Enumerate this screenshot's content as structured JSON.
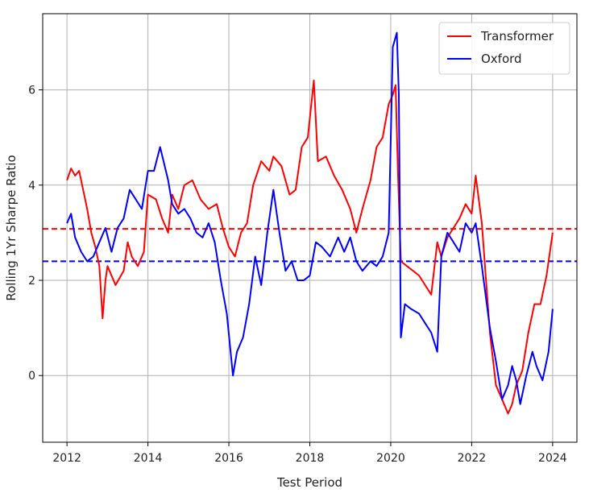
{
  "chart_data": {
    "type": "line",
    "title": "",
    "xlabel": "Test Period",
    "ylabel": "Rolling 1Yr Sharpe Ratio",
    "xlim": [
      2011.4,
      2024.6
    ],
    "ylim": [
      -1.4,
      7.6
    ],
    "x_ticks": [
      2012,
      2014,
      2016,
      2018,
      2020,
      2022,
      2024
    ],
    "x_tick_labels": [
      "2012",
      "2014",
      "2016",
      "2018",
      "2020",
      "2022",
      "2024"
    ],
    "y_ticks": [
      0,
      2,
      4,
      6
    ],
    "y_tick_labels": [
      "0",
      "2",
      "4",
      "6"
    ],
    "grid": true,
    "legend_position": "top-right",
    "series": [
      {
        "name": "Transformer",
        "color": "#ff0000",
        "mean": 3.08,
        "x": [
          2012.0,
          2012.1,
          2012.2,
          2012.3,
          2012.4,
          2012.5,
          2012.6,
          2012.7,
          2012.8,
          2012.88,
          2012.95,
          2013.0,
          2013.2,
          2013.4,
          2013.5,
          2013.6,
          2013.75,
          2013.9,
          2014.0,
          2014.2,
          2014.35,
          2014.5,
          2014.6,
          2014.75,
          2014.9,
          2015.1,
          2015.3,
          2015.5,
          2015.7,
          2015.85,
          2016.0,
          2016.15,
          2016.3,
          2016.45,
          2016.6,
          2016.8,
          2017.0,
          2017.1,
          2017.3,
          2017.5,
          2017.65,
          2017.8,
          2017.95,
          2018.1,
          2018.2,
          2018.4,
          2018.6,
          2018.8,
          2019.0,
          2019.15,
          2019.3,
          2019.5,
          2019.65,
          2019.8,
          2019.95,
          2020.05,
          2020.12,
          2020.18,
          2020.25,
          2020.4,
          2020.55,
          2020.7,
          2020.85,
          2021.0,
          2021.15,
          2021.25,
          2021.4,
          2021.55,
          2021.7,
          2021.85,
          2022.0,
          2022.1,
          2022.25,
          2022.45,
          2022.6,
          2022.75,
          2022.9,
          2023.0,
          2023.1,
          2023.25,
          2023.4,
          2023.55,
          2023.7,
          2023.85,
          2024.0
        ],
        "y": [
          4.1,
          4.35,
          4.2,
          4.3,
          3.9,
          3.5,
          3.0,
          2.7,
          2.3,
          1.2,
          2.0,
          2.3,
          1.9,
          2.2,
          2.8,
          2.5,
          2.3,
          2.6,
          3.8,
          3.7,
          3.3,
          3.0,
          3.8,
          3.5,
          4.0,
          4.1,
          3.7,
          3.5,
          3.6,
          3.1,
          2.7,
          2.5,
          3.0,
          3.2,
          4.0,
          4.5,
          4.3,
          4.6,
          4.4,
          3.8,
          3.9,
          4.8,
          5.0,
          6.2,
          4.5,
          4.6,
          4.2,
          3.9,
          3.5,
          3.0,
          3.5,
          4.1,
          4.8,
          5.0,
          5.7,
          5.9,
          6.1,
          4.2,
          2.4,
          2.3,
          2.2,
          2.1,
          1.9,
          1.7,
          2.8,
          2.5,
          2.9,
          3.1,
          3.3,
          3.6,
          3.4,
          4.2,
          3.2,
          0.9,
          -0.2,
          -0.5,
          -0.8,
          -0.6,
          -0.2,
          0.1,
          0.9,
          1.5,
          1.5,
          2.1,
          3.0
        ]
      },
      {
        "name": "Oxford",
        "color": "#0000ff",
        "mean": 2.4,
        "x": [
          2012.0,
          2012.1,
          2012.2,
          2012.35,
          2012.5,
          2012.65,
          2012.8,
          2012.95,
          2013.1,
          2013.25,
          2013.4,
          2013.55,
          2013.7,
          2013.85,
          2014.0,
          2014.15,
          2014.3,
          2014.5,
          2014.6,
          2014.75,
          2014.9,
          2015.05,
          2015.2,
          2015.35,
          2015.5,
          2015.65,
          2015.8,
          2015.95,
          2016.1,
          2016.2,
          2016.35,
          2016.5,
          2016.65,
          2016.8,
          2016.95,
          2017.1,
          2017.25,
          2017.4,
          2017.55,
          2017.7,
          2017.85,
          2018.0,
          2018.15,
          2018.3,
          2018.5,
          2018.7,
          2018.85,
          2019.0,
          2019.15,
          2019.3,
          2019.5,
          2019.65,
          2019.8,
          2019.95,
          2020.05,
          2020.15,
          2020.2,
          2020.25,
          2020.35,
          2020.5,
          2020.7,
          2020.85,
          2021.0,
          2021.15,
          2021.25,
          2021.4,
          2021.55,
          2021.7,
          2021.85,
          2022.0,
          2022.1,
          2022.25,
          2022.45,
          2022.6,
          2022.75,
          2022.9,
          2023.0,
          2023.1,
          2023.2,
          2023.35,
          2023.5,
          2023.6,
          2023.75,
          2023.9,
          2024.0
        ],
        "y": [
          3.2,
          3.4,
          2.9,
          2.6,
          2.4,
          2.5,
          2.8,
          3.1,
          2.6,
          3.1,
          3.3,
          3.9,
          3.7,
          3.5,
          4.3,
          4.3,
          4.8,
          4.1,
          3.6,
          3.4,
          3.5,
          3.3,
          3.0,
          2.9,
          3.2,
          2.8,
          2.0,
          1.3,
          0.0,
          0.5,
          0.8,
          1.5,
          2.5,
          1.9,
          3.0,
          3.9,
          3.0,
          2.2,
          2.4,
          2.0,
          2.0,
          2.1,
          2.8,
          2.7,
          2.5,
          2.9,
          2.6,
          2.9,
          2.4,
          2.2,
          2.4,
          2.3,
          2.5,
          3.0,
          6.9,
          7.2,
          5.9,
          0.8,
          1.5,
          1.4,
          1.3,
          1.1,
          0.9,
          0.5,
          2.5,
          3.0,
          2.8,
          2.6,
          3.2,
          3.0,
          3.2,
          2.3,
          1.0,
          0.3,
          -0.5,
          -0.2,
          0.2,
          -0.1,
          -0.6,
          0.0,
          0.5,
          0.2,
          -0.1,
          0.5,
          1.4
        ]
      }
    ]
  }
}
